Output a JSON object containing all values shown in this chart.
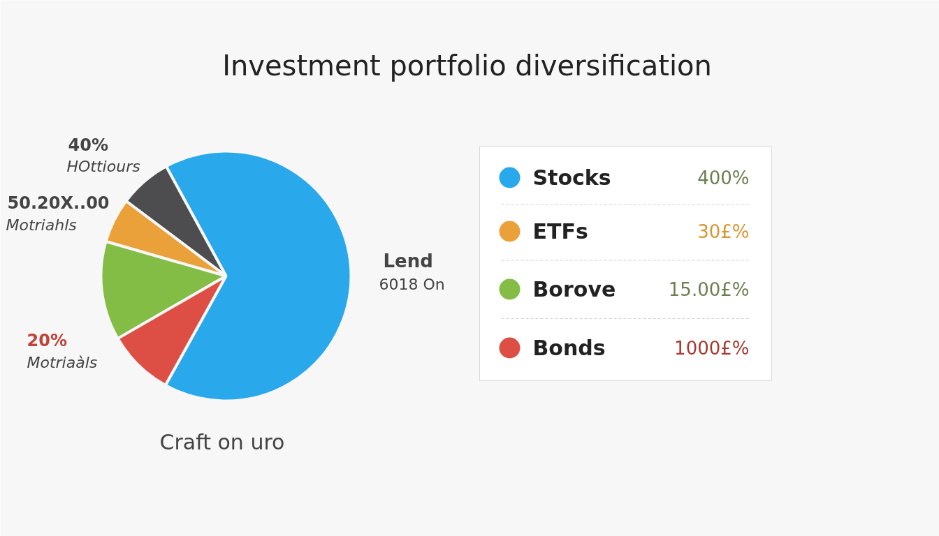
{
  "chart_data": {
    "type": "pie",
    "title": "Investment portfolio diversification",
    "categories": [
      "Stocks",
      null,
      "ETFs",
      "Borove",
      "Bonds"
    ],
    "values": [
      66,
      6.8,
      5.8,
      12.8,
      8.6
    ],
    "colors": [
      "#29a8eb",
      "#4d4d4f",
      "#eba13a",
      "#84bd45",
      "#dd4f45"
    ],
    "legend": "right",
    "annotations": [
      "40%",
      "HOttiours",
      "50.20X..00",
      "Motriahls",
      "Lend",
      "6018 On",
      "20%",
      "Motriaàls",
      "Craft on uro",
      "400%",
      "30£%",
      "15.00£%",
      "1000£%"
    ]
  }
}
